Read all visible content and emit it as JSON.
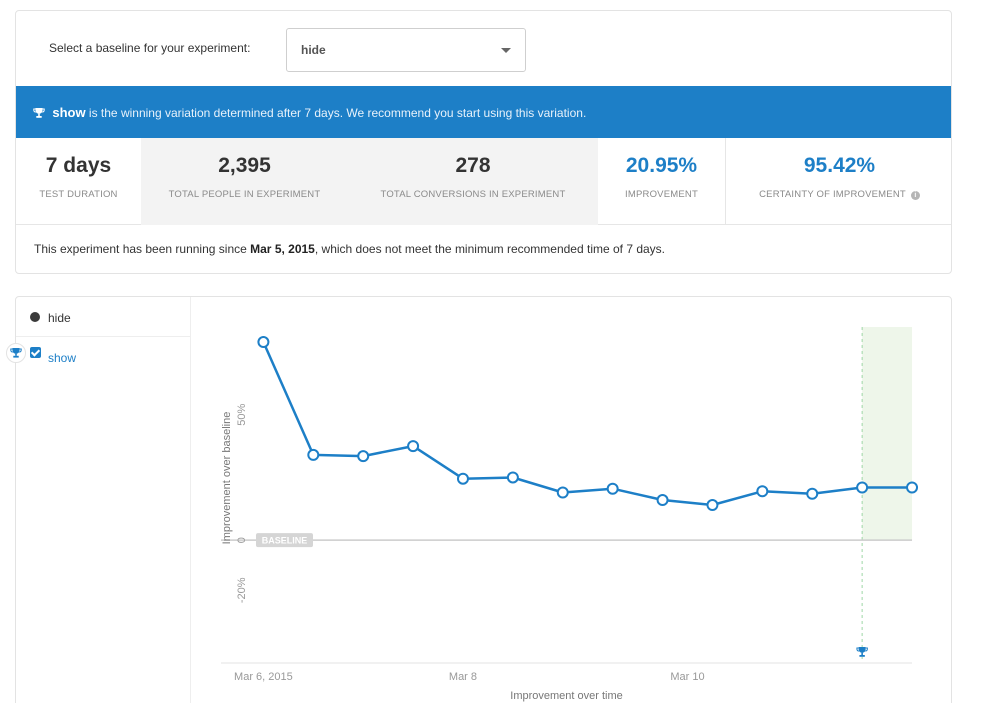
{
  "baseline": {
    "label": "Select a baseline for your experiment:",
    "selected": "hide"
  },
  "banner": {
    "winner": "show",
    "text": "is the winning variation determined after 7 days. We recommend you start using this variation."
  },
  "stats": [
    {
      "value": "7 days",
      "label": "TEST DURATION"
    },
    {
      "value": "2,395",
      "label": "TOTAL PEOPLE IN EXPERIMENT"
    },
    {
      "value": "278",
      "label": "TOTAL CONVERSIONS IN EXPERIMENT"
    },
    {
      "value": "20.95%",
      "label": "IMPROVEMENT"
    },
    {
      "value": "95.42%",
      "label": "CERTAINTY OF IMPROVEMENT"
    }
  ],
  "note": {
    "prefix": "This experiment has been running since",
    "date": "Mar 5, 2015",
    "suffix": ", which does not meet the minimum recommended time of 7 days."
  },
  "legend": {
    "baseline_name": "hide",
    "variation_name": "show"
  },
  "colors": {
    "accent": "#1d7fc7",
    "winner_zone": "#eef6ea",
    "baseline_line": "#cccccc"
  },
  "icons": {
    "banner": "trophy-icon",
    "winner": "trophy-icon",
    "dropdown": "chevron-down-icon",
    "info": "info-icon"
  },
  "chart_data": {
    "type": "line",
    "xlabel": "Improvement over time",
    "ylabel": "Improvement over baseline",
    "x_ticks": [
      {
        "x": 0,
        "label": "Mar 6, 2015"
      },
      {
        "x": 4,
        "label": "Mar 8"
      },
      {
        "x": 8.5,
        "label": "Mar 10"
      }
    ],
    "y_ticks": [
      {
        "y": 50,
        "label": "50%"
      },
      {
        "y": 0,
        "label": "0"
      },
      {
        "y": -20,
        "label": "-20%"
      }
    ],
    "ylim": [
      -45,
      85
    ],
    "xlim": [
      -0.85,
      13.2
    ],
    "baseline_label": "BASELINE",
    "winner_x": 12,
    "series": [
      {
        "name": "show",
        "x": [
          0,
          1,
          2,
          3,
          4,
          5,
          6,
          7,
          8,
          9,
          10,
          11,
          12,
          13
        ],
        "values": [
          79,
          34,
          33.5,
          37.5,
          24.5,
          25,
          19,
          20.5,
          16,
          14,
          19.5,
          18.5,
          21,
          21
        ]
      }
    ]
  }
}
